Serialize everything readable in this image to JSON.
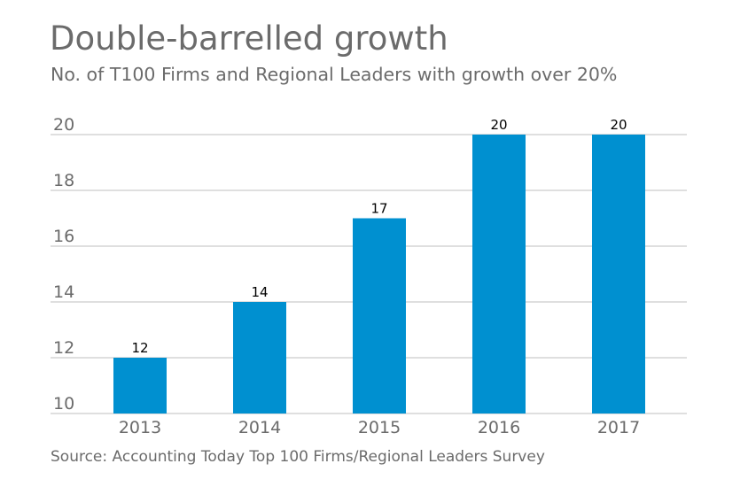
{
  "chart_data": {
    "type": "bar",
    "title": "Double-barrelled growth",
    "subtitle": "No. of T100 Firms and Regional Leaders with growth over 20%",
    "source": "Source: Accounting Today Top 100 Firms/Regional Leaders Survey",
    "categories": [
      "2013",
      "2014",
      "2015",
      "2016",
      "2017"
    ],
    "values": [
      12,
      14,
      17,
      20,
      20
    ],
    "xlabel": "",
    "ylabel": "",
    "ylim": [
      10,
      20
    ],
    "yticks": [
      10,
      12,
      14,
      16,
      18,
      20
    ],
    "grid": true,
    "bar_color": "#0090d0",
    "grid_color": "#bfbfbf",
    "axis_text_color": "#6b6b6b",
    "label_color": "#000000"
  }
}
